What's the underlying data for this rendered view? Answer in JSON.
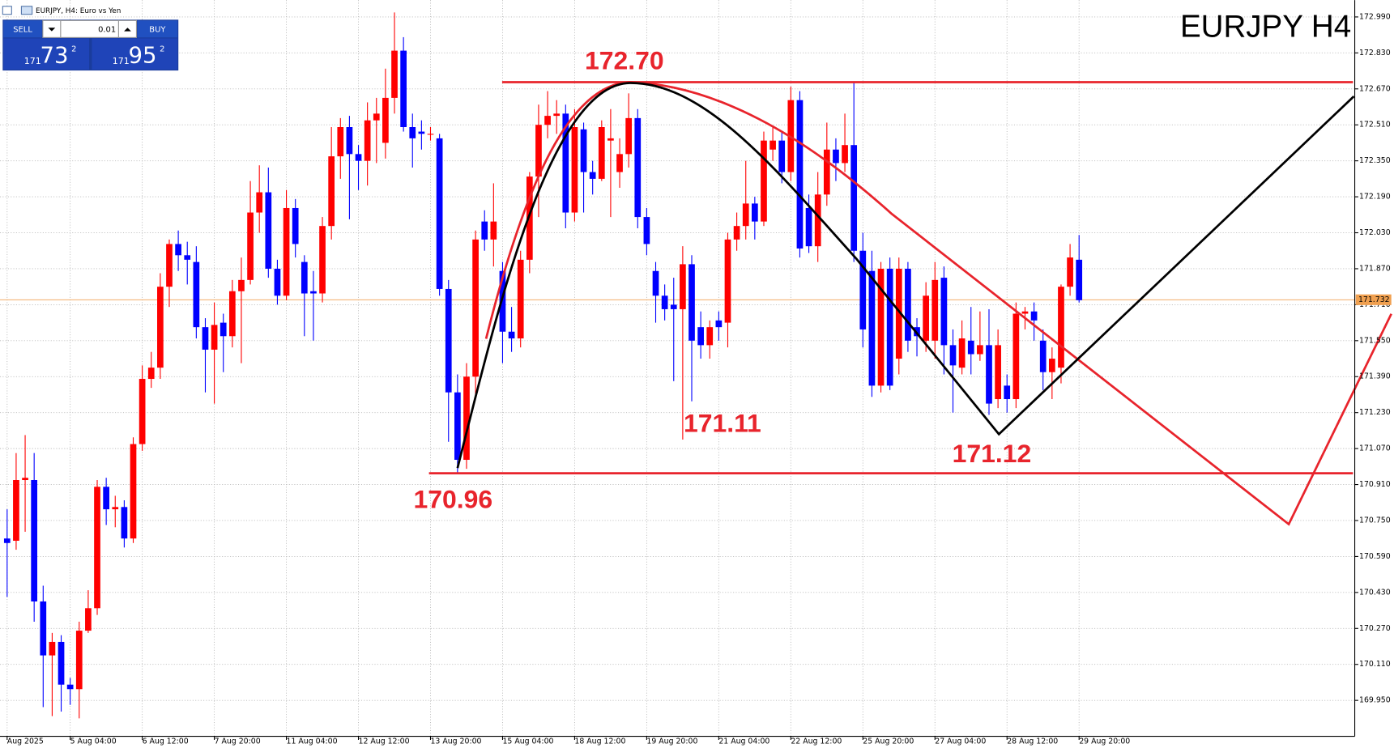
{
  "header": "EURJPY, H4:  Euro vs Yen",
  "widget": {
    "sell": "SELL",
    "buy": "BUY",
    "lot": "0.01",
    "bid": [
      "171",
      "73",
      "2"
    ],
    "ask": [
      "171",
      "95",
      "2"
    ]
  },
  "chart_data": {
    "type": "candlestick",
    "title": "EURJPY H4",
    "up_color": "#ff0000",
    "down_color": "#0000ff",
    "grid": true,
    "ylim": [
      169.79,
      173.065
    ],
    "yticks": [
      {
        "value": 172.99,
        "label": "172.990"
      },
      {
        "value": 172.83,
        "label": "172.830"
      },
      {
        "value": 172.67,
        "label": "172.670"
      },
      {
        "value": 172.51,
        "label": "172.510"
      },
      {
        "value": 172.35,
        "label": "172.350"
      },
      {
        "value": 172.19,
        "label": "172.190"
      },
      {
        "value": 172.03,
        "label": "172.030"
      },
      {
        "value": 171.87,
        "label": "171.870"
      },
      {
        "value": 171.71,
        "label": "171.710"
      },
      {
        "value": 171.55,
        "label": "171.550"
      },
      {
        "value": 171.39,
        "label": "171.390"
      },
      {
        "value": 171.23,
        "label": "171.230"
      },
      {
        "value": 171.07,
        "label": "171.070"
      },
      {
        "value": 170.91,
        "label": "170.910"
      },
      {
        "value": 170.75,
        "label": "170.750"
      },
      {
        "value": 170.59,
        "label": "170.590"
      },
      {
        "value": 170.43,
        "label": "170.430"
      },
      {
        "value": 170.27,
        "label": "170.270"
      },
      {
        "value": 170.11,
        "label": "170.110"
      },
      {
        "value": 169.95,
        "label": "169.950"
      }
    ],
    "last_price": 171.732,
    "price_color": "#f0a050",
    "annotations": [
      {
        "value": 172.7,
        "label": "172.70"
      },
      {
        "value": 170.96,
        "label": "170.96"
      },
      {
        "value": 171.11,
        "label": "171.11"
      },
      {
        "value": 171.12,
        "label": "171.12"
      }
    ],
    "categories": [
      "Aug 2025",
      null,
      null,
      null,
      null,
      null,
      null,
      "5 Aug 04:00",
      null,
      null,
      null,
      null,
      null,
      null,
      null,
      "6 Aug 12:00",
      null,
      null,
      null,
      null,
      null,
      null,
      null,
      "7 Aug 20:00",
      null,
      null,
      null,
      null,
      null,
      null,
      null,
      "11 Aug 04:00",
      null,
      null,
      null,
      null,
      null,
      null,
      null,
      "12 Aug 12:00",
      null,
      null,
      null,
      null,
      null,
      null,
      null,
      "13 Aug 20:00",
      null,
      null,
      null,
      null,
      null,
      null,
      null,
      "15 Aug 04:00",
      null,
      null,
      null,
      null,
      null,
      null,
      null,
      "18 Aug 12:00",
      null,
      null,
      null,
      null,
      null,
      null,
      null,
      "19 Aug 20:00",
      null,
      null,
      null,
      null,
      null,
      null,
      null,
      "21 Aug 04:00",
      null,
      null,
      null,
      null,
      null,
      null,
      null,
      "22 Aug 12:00",
      null,
      null,
      null,
      null,
      null,
      null,
      null,
      "25 Aug 20:00",
      null,
      null,
      null,
      null,
      null,
      null,
      null,
      "27 Aug 04:00",
      null,
      null,
      null,
      null,
      null,
      null,
      null,
      "28 Aug 12:00",
      null,
      null,
      null,
      null,
      null,
      null,
      null,
      "29 Aug 20:00"
    ],
    "ohlc": [
      [
        170.67,
        170.8,
        170.41,
        170.65
      ],
      [
        170.66,
        171.05,
        170.62,
        170.93
      ],
      [
        170.93,
        171.13,
        170.7,
        170.94
      ],
      [
        170.93,
        171.05,
        170.3,
        170.39
      ],
      [
        170.39,
        170.46,
        169.92,
        170.15
      ],
      [
        170.15,
        170.25,
        169.88,
        170.21
      ],
      [
        170.21,
        170.24,
        169.9,
        170.02
      ],
      [
        170.02,
        170.05,
        169.93,
        170.0
      ],
      [
        170.0,
        170.3,
        169.87,
        170.26
      ],
      [
        170.26,
        170.44,
        170.25,
        170.36
      ],
      [
        170.36,
        170.93,
        170.33,
        170.9
      ],
      [
        170.9,
        170.94,
        170.73,
        170.8
      ],
      [
        170.8,
        170.86,
        170.72,
        170.81
      ],
      [
        170.81,
        170.84,
        170.63,
        170.67
      ],
      [
        170.67,
        171.12,
        170.65,
        171.09
      ],
      [
        171.09,
        171.44,
        171.06,
        171.38
      ],
      [
        171.38,
        171.5,
        171.34,
        171.43
      ],
      [
        171.43,
        171.85,
        171.38,
        171.79
      ],
      [
        171.79,
        172.0,
        171.7,
        171.98
      ],
      [
        171.98,
        172.04,
        171.86,
        171.93
      ],
      [
        171.93,
        171.99,
        171.8,
        171.91
      ],
      [
        171.9,
        171.97,
        171.56,
        171.61
      ],
      [
        171.61,
        171.65,
        171.32,
        171.51
      ],
      [
        171.51,
        171.72,
        171.27,
        171.62
      ],
      [
        171.63,
        171.67,
        171.41,
        171.57
      ],
      [
        171.57,
        171.82,
        171.52,
        171.77
      ],
      [
        171.77,
        171.92,
        171.45,
        171.82
      ],
      [
        171.82,
        172.26,
        171.8,
        172.12
      ],
      [
        172.12,
        172.33,
        172.03,
        172.21
      ],
      [
        172.21,
        172.32,
        171.83,
        171.87
      ],
      [
        171.87,
        171.91,
        171.71,
        171.75
      ],
      [
        171.75,
        172.22,
        171.73,
        172.14
      ],
      [
        172.14,
        172.18,
        171.92,
        171.98
      ],
      [
        171.9,
        171.93,
        171.57,
        171.76
      ],
      [
        171.77,
        171.86,
        171.55,
        171.76
      ],
      [
        171.76,
        172.1,
        171.72,
        172.06
      ],
      [
        172.06,
        172.5,
        172.0,
        172.37
      ],
      [
        172.37,
        172.54,
        172.27,
        172.5
      ],
      [
        172.5,
        172.55,
        172.09,
        172.38
      ],
      [
        172.38,
        172.42,
        172.22,
        172.35
      ],
      [
        172.35,
        172.61,
        172.24,
        172.53
      ],
      [
        172.53,
        172.63,
        172.34,
        172.56
      ],
      [
        172.43,
        172.76,
        172.36,
        172.63
      ],
      [
        172.63,
        173.01,
        172.56,
        172.84
      ],
      [
        172.84,
        172.9,
        172.48,
        172.5
      ],
      [
        172.5,
        172.56,
        172.32,
        172.45
      ],
      [
        172.48,
        172.53,
        172.4,
        172.47
      ],
      [
        172.47,
        172.5,
        172.44,
        172.47
      ],
      [
        172.45,
        172.47,
        171.75,
        171.78
      ],
      [
        171.78,
        171.82,
        171.1,
        171.32
      ],
      [
        171.32,
        171.4,
        170.96,
        171.02
      ],
      [
        171.02,
        171.45,
        170.98,
        171.39
      ],
      [
        171.39,
        172.04,
        171.3,
        172.0
      ],
      [
        172.08,
        172.13,
        171.95,
        172.0
      ],
      [
        172.0,
        172.25,
        171.88,
        172.08
      ],
      [
        171.86,
        171.9,
        171.45,
        171.59
      ],
      [
        171.59,
        171.7,
        171.5,
        171.56
      ],
      [
        171.56,
        171.95,
        171.52,
        171.91
      ],
      [
        171.91,
        172.3,
        171.85,
        172.28
      ],
      [
        172.28,
        172.6,
        172.1,
        172.51
      ],
      [
        172.51,
        172.66,
        172.45,
        172.55
      ],
      [
        172.55,
        172.62,
        172.47,
        172.56
      ],
      [
        172.56,
        172.6,
        172.05,
        172.12
      ],
      [
        172.12,
        172.58,
        172.08,
        172.5
      ],
      [
        172.49,
        172.52,
        172.12,
        172.3
      ],
      [
        172.3,
        172.35,
        172.2,
        172.27
      ],
      [
        172.27,
        172.53,
        172.26,
        172.5
      ],
      [
        172.44,
        172.58,
        172.1,
        172.45
      ],
      [
        172.3,
        172.45,
        172.23,
        172.38
      ],
      [
        172.38,
        172.65,
        172.32,
        172.54
      ],
      [
        172.54,
        172.58,
        172.05,
        172.1
      ],
      [
        172.1,
        172.14,
        171.93,
        171.98
      ],
      [
        171.86,
        171.9,
        171.63,
        171.75
      ],
      [
        171.75,
        171.8,
        171.64,
        171.69
      ],
      [
        171.71,
        171.83,
        171.37,
        171.69
      ],
      [
        171.69,
        171.97,
        171.11,
        171.89
      ],
      [
        171.89,
        171.93,
        171.28,
        171.55
      ],
      [
        171.61,
        171.68,
        171.47,
        171.53
      ],
      [
        171.53,
        171.64,
        171.47,
        171.61
      ],
      [
        171.64,
        171.68,
        171.55,
        171.61
      ],
      [
        171.63,
        172.03,
        171.52,
        172.0
      ],
      [
        172.0,
        172.12,
        171.95,
        172.06
      ],
      [
        172.06,
        172.35,
        172.0,
        172.16
      ],
      [
        172.16,
        172.19,
        172.0,
        172.08
      ],
      [
        172.08,
        172.48,
        172.06,
        172.44
      ],
      [
        172.4,
        172.5,
        172.35,
        172.44
      ],
      [
        172.44,
        172.48,
        172.25,
        172.3
      ],
      [
        172.3,
        172.68,
        172.26,
        172.62
      ],
      [
        172.62,
        172.66,
        171.92,
        171.96
      ],
      [
        172.14,
        172.2,
        171.94,
        171.97
      ],
      [
        171.97,
        172.3,
        171.9,
        172.2
      ],
      [
        172.2,
        172.52,
        172.15,
        172.4
      ],
      [
        172.4,
        172.45,
        172.26,
        172.34
      ],
      [
        172.34,
        172.56,
        172.3,
        172.42
      ],
      [
        172.42,
        172.7,
        171.9,
        171.95
      ],
      [
        171.95,
        172.03,
        171.52,
        171.6
      ],
      [
        171.86,
        171.95,
        171.3,
        171.35
      ],
      [
        171.35,
        171.9,
        171.32,
        171.87
      ],
      [
        171.87,
        171.92,
        171.33,
        171.35
      ],
      [
        171.47,
        171.92,
        171.4,
        171.87
      ],
      [
        171.87,
        171.9,
        171.5,
        171.55
      ],
      [
        171.61,
        171.65,
        171.48,
        171.57
      ],
      [
        171.55,
        171.81,
        171.5,
        171.75
      ],
      [
        171.55,
        171.9,
        171.47,
        171.82
      ],
      [
        171.83,
        171.88,
        171.4,
        171.53
      ],
      [
        171.53,
        171.6,
        171.23,
        171.44
      ],
      [
        171.43,
        171.64,
        171.4,
        171.56
      ],
      [
        171.55,
        171.7,
        171.4,
        171.49
      ],
      [
        171.49,
        171.68,
        171.46,
        171.53
      ],
      [
        171.53,
        171.69,
        171.22,
        171.27
      ],
      [
        171.29,
        171.6,
        171.25,
        171.53
      ],
      [
        171.35,
        171.4,
        171.23,
        171.29
      ],
      [
        171.29,
        171.72,
        171.25,
        171.67
      ],
      [
        171.67,
        171.7,
        171.6,
        171.68
      ],
      [
        171.68,
        171.72,
        171.55,
        171.64
      ],
      [
        171.55,
        171.6,
        171.33,
        171.41
      ],
      [
        171.41,
        171.52,
        171.29,
        171.47
      ],
      [
        171.43,
        171.8,
        171.36,
        171.79
      ],
      [
        171.79,
        171.98,
        171.75,
        171.92
      ],
      [
        171.91,
        172.02,
        171.72,
        171.73
      ]
    ]
  }
}
